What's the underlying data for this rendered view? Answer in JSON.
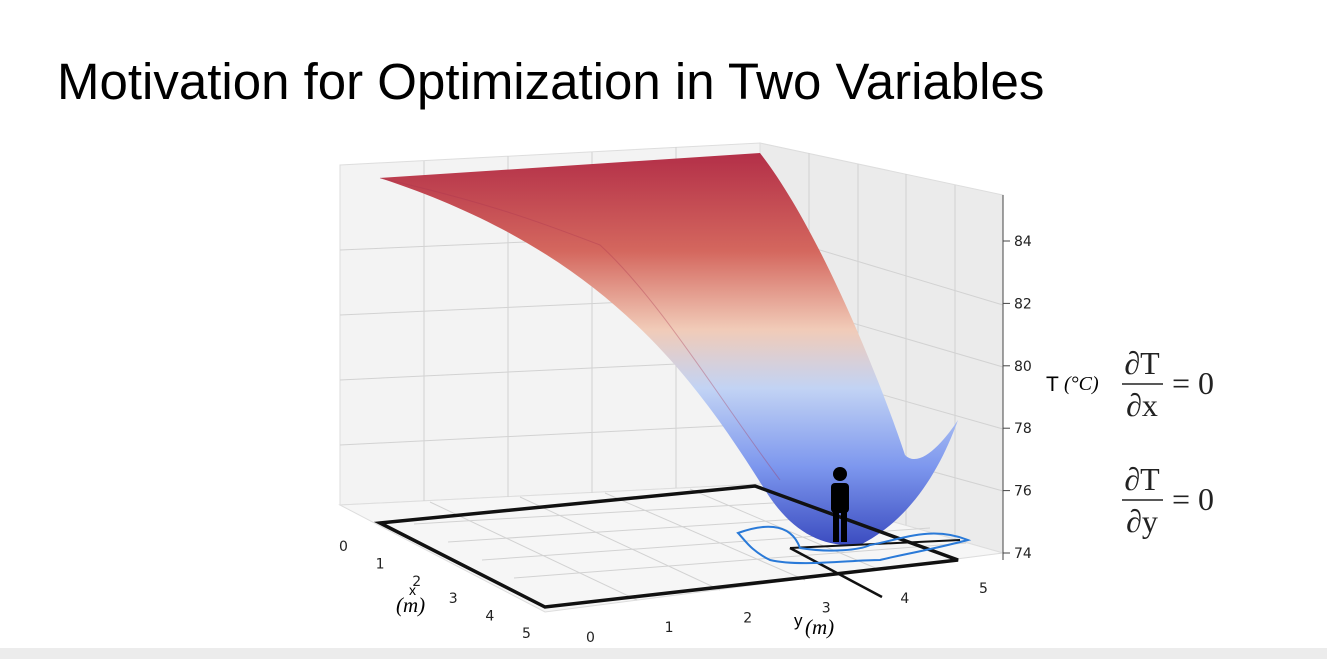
{
  "slide": {
    "title": "Motivation for Optimization in Two Variables",
    "plot": {
      "x_ticks": [
        "0",
        "1",
        "2",
        "3",
        "4",
        "5"
      ],
      "x_label": "x",
      "x_unit": "(m)",
      "y_ticks": [
        "0",
        "1",
        "2",
        "3",
        "4",
        "5"
      ],
      "y_label": "y",
      "y_unit": "(m)",
      "z_ticks": [
        "74",
        "76",
        "78",
        "80",
        "82",
        "84"
      ],
      "z_label": "T",
      "z_unit": "(°C)"
    },
    "equations": [
      {
        "numerator": "∂T",
        "denominator": "∂x",
        "rhs": "= 0"
      },
      {
        "numerator": "∂T",
        "denominator": "∂y",
        "rhs": "= 0"
      }
    ]
  }
}
